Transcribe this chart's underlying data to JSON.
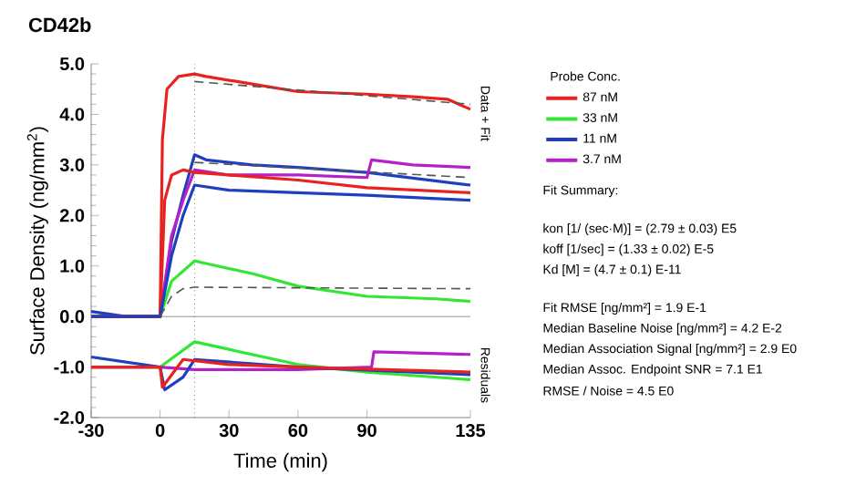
{
  "chart_data": {
    "type": "line",
    "title": "CD42b",
    "xlabel": "Time (min)",
    "ylabel": "Surface Density (ng/mm$^{2}$)",
    "legend_title": "Probe Conc.",
    "legend": "right",
    "grid": false,
    "xlim": [
      -30,
      135
    ],
    "xticks": [
      -30,
      0,
      30,
      60,
      90,
      135
    ],
    "ylim": [
      -2,
      5
    ],
    "yticks": [
      {
        "value": -2,
        "label": "-2.0"
      },
      {
        "value": -1,
        "label": "-1.0"
      },
      {
        "value": 0,
        "label": "0.0"
      },
      {
        "value": 1,
        "label": "1.0"
      },
      {
        "value": 2,
        "label": "2.0"
      },
      {
        "value": 3,
        "label": "3.0"
      },
      {
        "value": 4,
        "label": "4.0"
      },
      {
        "value": 5,
        "label": "5.0"
      }
    ],
    "ref_lines": [
      {
        "axis": "y",
        "value": 0,
        "color": "#777777"
      },
      {
        "axis": "x",
        "value": 15,
        "color": "#333333",
        "line_style": "dotted"
      }
    ],
    "series": [
      {
        "name": "87 nM",
        "color": "#e8231f",
        "x": [
          -30,
          -15,
          0,
          1,
          3,
          8,
          15,
          20,
          40,
          60,
          90,
          110,
          125,
          135
        ],
        "values": [
          0,
          0,
          0,
          3.5,
          4.5,
          4.75,
          4.8,
          4.75,
          4.6,
          4.45,
          4.4,
          4.35,
          4.3,
          4.1
        ]
      },
      {
        "name": "33 nM",
        "color": "#33e633",
        "x": [
          -30,
          -15,
          0,
          5,
          15,
          20,
          40,
          60,
          90,
          120,
          135
        ],
        "values": [
          0,
          0,
          0,
          0.7,
          1.1,
          1.05,
          0.85,
          0.6,
          0.4,
          0.35,
          0.3
        ]
      },
      {
        "name": "11 nM",
        "color": "#1f3fbf",
        "x": [
          -30,
          -15,
          0,
          5,
          10,
          15,
          20,
          40,
          60,
          90,
          135
        ],
        "values": [
          0.1,
          0,
          0,
          1.5,
          2.4,
          3.2,
          3.1,
          3.0,
          2.95,
          2.85,
          2.6
        ]
      },
      {
        "name": "3.7 nM",
        "color": "#b520c8",
        "x": [
          -30,
          -15,
          0,
          5,
          10,
          15,
          30,
          60,
          90,
          92,
          110,
          135
        ],
        "values": [
          0,
          0,
          0,
          1.6,
          2.3,
          2.9,
          2.8,
          2.8,
          2.75,
          3.1,
          3.0,
          2.95
        ]
      },
      {
        "color": "#e8231f",
        "x": [
          -30,
          -15,
          0,
          2,
          5,
          10,
          15,
          30,
          60,
          90,
          135
        ],
        "values": [
          0,
          0,
          0,
          2.3,
          2.8,
          2.9,
          2.85,
          2.8,
          2.7,
          2.55,
          2.45
        ]
      },
      {
        "color": "#1f3fbf",
        "x": [
          -30,
          -15,
          0,
          5,
          10,
          15,
          30,
          60,
          90,
          135
        ],
        "values": [
          0,
          0,
          0,
          1.2,
          2.0,
          2.6,
          2.5,
          2.45,
          2.4,
          2.3
        ]
      },
      {
        "color": "#555555",
        "line_style": "dashed",
        "x": [
          0,
          5,
          10,
          15,
          135
        ],
        "values": [
          0,
          0.4,
          0.55,
          0.58,
          0.55
        ]
      },
      {
        "color": "#555555",
        "line_style": "dashed",
        "x": [
          15,
          135
        ],
        "values": [
          4.65,
          4.2
        ]
      },
      {
        "color": "#555555",
        "line_style": "dashed",
        "x": [
          15,
          135
        ],
        "values": [
          3.05,
          2.75
        ]
      },
      {
        "color": "#33e633",
        "x": [
          -30,
          0,
          15,
          30,
          60,
          90,
          135
        ],
        "values": [
          -1,
          -1,
          -0.5,
          -0.65,
          -0.95,
          -1.1,
          -1.25
        ]
      },
      {
        "color": "#b520c8",
        "x": [
          -30,
          0,
          15,
          60,
          92,
          93,
          135
        ],
        "values": [
          -1,
          -1,
          -1.05,
          -1.05,
          -1.0,
          -0.7,
          -0.75
        ]
      },
      {
        "color": "#1f3fbf",
        "x": [
          -30,
          0,
          2,
          10,
          15,
          60,
          135
        ],
        "values": [
          -0.8,
          -1,
          -1.45,
          -1.2,
          -0.85,
          -1.0,
          -1.15
        ]
      },
      {
        "color": "#e8231f",
        "x": [
          -30,
          0,
          1,
          10,
          30,
          60,
          135
        ],
        "values": [
          -1,
          -1,
          -1.4,
          -0.85,
          -0.95,
          -1.0,
          -1.1
        ]
      }
    ],
    "annotations": [
      "Data + Fit",
      "Residuals",
      "Fit Summary:",
      "kon  [1/ (sec·M)]  =   (2.79 ± 0.03) E5",
      "koff  [1/sec]  =   (1.33 ± 0.02) E-5",
      "Kd  [M]  =   (4.7 ± 0.1) E-11",
      "Fit RMSE [ng/mm²]  =   1.9 E-1",
      "Median Baseline Noise [ng/mm²]  =   4.2 E-2",
      "Median Association Signal [ng/mm²]  =   2.9 E0",
      "Median Assoc. Endpoint SNR  =   7.1 E1",
      "RMSE / Noise  =   4.5 E0"
    ]
  }
}
